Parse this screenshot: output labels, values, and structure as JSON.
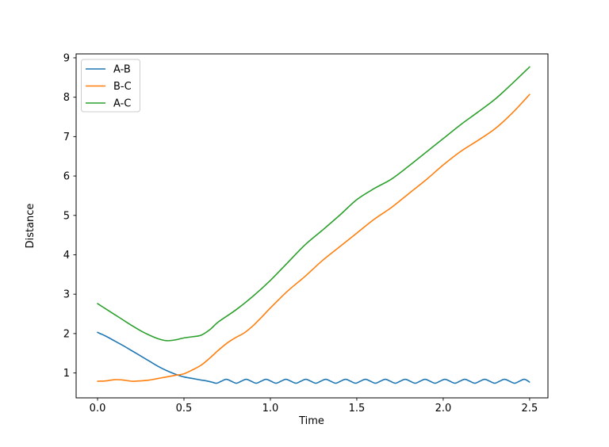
{
  "chart_data": {
    "type": "line",
    "title": "",
    "xlabel": "Time",
    "ylabel": "Distance",
    "x_ticks": [
      0.0,
      0.5,
      1.0,
      1.5,
      2.0,
      2.5
    ],
    "x_tick_labels": [
      "0.0",
      "0.5",
      "1.0",
      "1.5",
      "2.0",
      "2.5"
    ],
    "y_ticks": [
      1,
      2,
      3,
      4,
      5,
      6,
      7,
      8,
      9
    ],
    "y_tick_labels": [
      "1",
      "2",
      "3",
      "4",
      "5",
      "6",
      "7",
      "8",
      "9"
    ],
    "grid": false,
    "legend": {
      "position": "upper left"
    },
    "layout": {
      "axes_rect": [
        96,
        68,
        595,
        434
      ],
      "xlim": [
        -0.124,
        2.606
      ],
      "ylim": [
        0.368,
        9.1
      ]
    },
    "background_color": "#ffffff",
    "axis_color": "#000000",
    "legend_border_color": "#cccccc",
    "series": [
      {
        "name": "A-B",
        "color": "#1f77b4",
        "points": [
          [
            0,
            2.03
          ],
          [
            0.05,
            1.93
          ],
          [
            0.1,
            1.81
          ],
          [
            0.15,
            1.69
          ],
          [
            0.2,
            1.56
          ],
          [
            0.25,
            1.43
          ],
          [
            0.3,
            1.3
          ],
          [
            0.35,
            1.17
          ],
          [
            0.4,
            1.06
          ],
          [
            0.45,
            0.97
          ],
          [
            0.5,
            0.9
          ],
          [
            0.55,
            0.86
          ],
          [
            0.6,
            0.82
          ],
          [
            0.63,
            0.8
          ],
          [
            0.66,
            0.77
          ],
          [
            0.688,
            0.74
          ],
          [
            0.716,
            0.79
          ],
          [
            0.745,
            0.84
          ],
          [
            0.774,
            0.79
          ],
          [
            0.803,
            0.74
          ],
          [
            0.831,
            0.79
          ],
          [
            0.86,
            0.84
          ],
          [
            0.889,
            0.79
          ],
          [
            0.918,
            0.74
          ],
          [
            0.946,
            0.79
          ],
          [
            0.975,
            0.84
          ],
          [
            1.004,
            0.79
          ],
          [
            1.033,
            0.74
          ],
          [
            1.061,
            0.79
          ],
          [
            1.09,
            0.84
          ],
          [
            1.119,
            0.79
          ],
          [
            1.148,
            0.74
          ],
          [
            1.176,
            0.79
          ],
          [
            1.205,
            0.84
          ],
          [
            1.234,
            0.79
          ],
          [
            1.263,
            0.74
          ],
          [
            1.291,
            0.79
          ],
          [
            1.32,
            0.84
          ],
          [
            1.349,
            0.79
          ],
          [
            1.378,
            0.74
          ],
          [
            1.406,
            0.79
          ],
          [
            1.435,
            0.84
          ],
          [
            1.464,
            0.79
          ],
          [
            1.493,
            0.74
          ],
          [
            1.521,
            0.79
          ],
          [
            1.55,
            0.84
          ],
          [
            1.579,
            0.79
          ],
          [
            1.608,
            0.74
          ],
          [
            1.636,
            0.79
          ],
          [
            1.665,
            0.84
          ],
          [
            1.694,
            0.79
          ],
          [
            1.723,
            0.74
          ],
          [
            1.751,
            0.79
          ],
          [
            1.78,
            0.84
          ],
          [
            1.809,
            0.79
          ],
          [
            1.838,
            0.74
          ],
          [
            1.866,
            0.79
          ],
          [
            1.895,
            0.84
          ],
          [
            1.924,
            0.79
          ],
          [
            1.953,
            0.74
          ],
          [
            1.981,
            0.79
          ],
          [
            2.01,
            0.84
          ],
          [
            2.039,
            0.79
          ],
          [
            2.068,
            0.74
          ],
          [
            2.096,
            0.79
          ],
          [
            2.125,
            0.84
          ],
          [
            2.154,
            0.79
          ],
          [
            2.183,
            0.74
          ],
          [
            2.211,
            0.79
          ],
          [
            2.24,
            0.84
          ],
          [
            2.269,
            0.79
          ],
          [
            2.298,
            0.74
          ],
          [
            2.326,
            0.79
          ],
          [
            2.355,
            0.84
          ],
          [
            2.384,
            0.79
          ],
          [
            2.413,
            0.74
          ],
          [
            2.441,
            0.79
          ],
          [
            2.47,
            0.84
          ],
          [
            2.499,
            0.77
          ]
        ]
      },
      {
        "name": "B-C",
        "color": "#ff7f0e",
        "points": [
          [
            0,
            0.79
          ],
          [
            0.05,
            0.8
          ],
          [
            0.1,
            0.83
          ],
          [
            0.15,
            0.82
          ],
          [
            0.2,
            0.79
          ],
          [
            0.25,
            0.8
          ],
          [
            0.3,
            0.82
          ],
          [
            0.35,
            0.86
          ],
          [
            0.4,
            0.9
          ],
          [
            0.45,
            0.94
          ],
          [
            0.5,
            0.98
          ],
          [
            0.55,
            1.08
          ],
          [
            0.6,
            1.2
          ],
          [
            0.65,
            1.38
          ],
          [
            0.7,
            1.58
          ],
          [
            0.75,
            1.76
          ],
          [
            0.8,
            1.9
          ],
          [
            0.85,
            2.02
          ],
          [
            0.9,
            2.2
          ],
          [
            0.95,
            2.42
          ],
          [
            1.0,
            2.65
          ],
          [
            1.1,
            3.08
          ],
          [
            1.2,
            3.45
          ],
          [
            1.3,
            3.85
          ],
          [
            1.4,
            4.2
          ],
          [
            1.5,
            4.55
          ],
          [
            1.6,
            4.9
          ],
          [
            1.7,
            5.2
          ],
          [
            1.8,
            5.55
          ],
          [
            1.9,
            5.9
          ],
          [
            2.0,
            6.28
          ],
          [
            2.1,
            6.62
          ],
          [
            2.2,
            6.9
          ],
          [
            2.3,
            7.2
          ],
          [
            2.4,
            7.6
          ],
          [
            2.5,
            8.07
          ]
        ]
      },
      {
        "name": "A-C",
        "color": "#2ca02c",
        "points": [
          [
            0,
            2.76
          ],
          [
            0.05,
            2.62
          ],
          [
            0.1,
            2.48
          ],
          [
            0.15,
            2.34
          ],
          [
            0.2,
            2.2
          ],
          [
            0.25,
            2.07
          ],
          [
            0.3,
            1.96
          ],
          [
            0.35,
            1.87
          ],
          [
            0.4,
            1.82
          ],
          [
            0.45,
            1.84
          ],
          [
            0.5,
            1.89
          ],
          [
            0.55,
            1.92
          ],
          [
            0.6,
            1.96
          ],
          [
            0.65,
            2.1
          ],
          [
            0.7,
            2.3
          ],
          [
            0.8,
            2.6
          ],
          [
            0.9,
            2.95
          ],
          [
            1.0,
            3.35
          ],
          [
            1.1,
            3.8
          ],
          [
            1.2,
            4.25
          ],
          [
            1.3,
            4.62
          ],
          [
            1.4,
            5.0
          ],
          [
            1.5,
            5.4
          ],
          [
            1.6,
            5.68
          ],
          [
            1.7,
            5.92
          ],
          [
            1.8,
            6.25
          ],
          [
            1.9,
            6.6
          ],
          [
            2.0,
            6.95
          ],
          [
            2.1,
            7.3
          ],
          [
            2.2,
            7.62
          ],
          [
            2.3,
            7.95
          ],
          [
            2.4,
            8.35
          ],
          [
            2.5,
            8.77
          ]
        ]
      }
    ]
  }
}
